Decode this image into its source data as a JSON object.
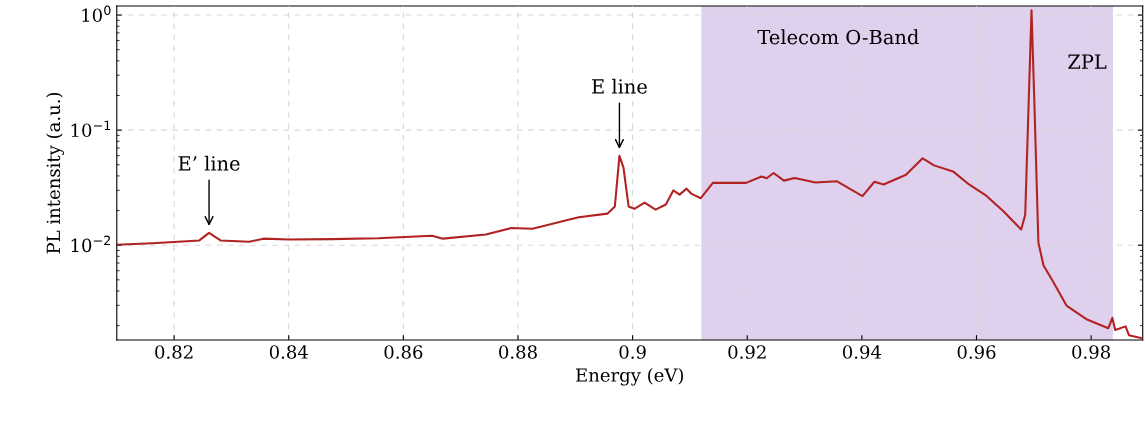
{
  "chart_data": {
    "type": "line",
    "xlabel": "Energy (eV)",
    "ylabel": "PL intensity (a.u.)",
    "xlim": [
      0.81,
      0.989
    ],
    "xticks": [
      0.82,
      0.84,
      0.86,
      0.88,
      0.9,
      0.92,
      0.94,
      0.96,
      0.98
    ],
    "log": true,
    "ylim": [
      0.0015,
      1.2
    ],
    "yticks": [
      {
        "value": 0.01,
        "label": "10$^{−2}$"
      },
      {
        "value": 0.1,
        "label": "10$^{−1}$"
      },
      {
        "value": 1,
        "label": "10$^{0}$"
      }
    ],
    "grid": true,
    "line_style": "solid",
    "marker": "none",
    "bands": [
      {
        "axis": "x",
        "from": 0.912,
        "to": 0.9838,
        "label": "Telecom O-Band",
        "color": "#dfd0ee"
      }
    ],
    "annotations": [
      {
        "text": "E’ line",
        "x": 0.8261,
        "y": 0.0128
      },
      {
        "text": "E line",
        "x": 0.8977,
        "y": 0.0597
      },
      {
        "text": "ZPL",
        "x": 0.9696,
        "y": 1.1
      }
    ],
    "series": [
      {
        "color": "#b22222",
        "x": [
          0.81,
          0.8162,
          0.8244,
          0.8261,
          0.8281,
          0.8331,
          0.8356,
          0.84,
          0.8475,
          0.8556,
          0.865,
          0.8669,
          0.8744,
          0.8788,
          0.8825,
          0.885,
          0.8881,
          0.8906,
          0.8956,
          0.8969,
          0.8977,
          0.8984,
          0.8993,
          0.9003,
          0.9021,
          0.904,
          0.9058,
          0.9071,
          0.9082,
          0.9094,
          0.9103,
          0.9119,
          0.914,
          0.9198,
          0.9225,
          0.9234,
          0.9246,
          0.9264,
          0.9283,
          0.9319,
          0.9356,
          0.9401,
          0.9422,
          0.9438,
          0.9477,
          0.9506,
          0.9526,
          0.9559,
          0.9587,
          0.9617,
          0.9647,
          0.9678,
          0.9685,
          0.9691,
          0.9696,
          0.9701,
          0.9708,
          0.9717,
          0.9733,
          0.9757,
          0.9793,
          0.983,
          0.9837,
          0.9842,
          0.986,
          0.9866,
          0.9889
        ],
        "values": [
          0.0101,
          0.0104,
          0.011,
          0.0128,
          0.011,
          0.0107,
          0.0114,
          0.0112,
          0.0113,
          0.0115,
          0.0121,
          0.0114,
          0.0124,
          0.0141,
          0.0139,
          0.0149,
          0.0163,
          0.0175,
          0.0188,
          0.0217,
          0.0597,
          0.0475,
          0.0217,
          0.0207,
          0.0234,
          0.0204,
          0.0226,
          0.0299,
          0.0275,
          0.031,
          0.0279,
          0.0256,
          0.0348,
          0.0348,
          0.0395,
          0.0382,
          0.0424,
          0.0364,
          0.0384,
          0.0351,
          0.036,
          0.0267,
          0.0356,
          0.0337,
          0.0409,
          0.0569,
          0.0494,
          0.0438,
          0.0337,
          0.0269,
          0.0197,
          0.0137,
          0.0184,
          0.171,
          1.1,
          0.171,
          0.0105,
          0.00667,
          0.00488,
          0.00299,
          0.00226,
          0.0019,
          0.00234,
          0.00183,
          0.00197,
          0.00165,
          0.00155
        ]
      }
    ]
  }
}
